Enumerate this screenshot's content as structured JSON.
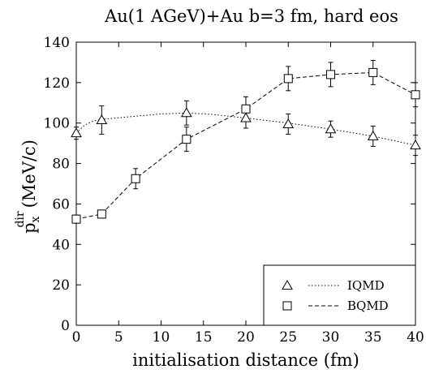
{
  "chart_data": {
    "type": "line",
    "title": "Au(1 AGeV)+Au b=3 fm, hard eos",
    "xlabel": "initialisation distance (fm)",
    "ylabel": {
      "main": "p",
      "sub": "x",
      "sup": "dir",
      "unit": "(MeV/c)"
    },
    "xlim": [
      0,
      40
    ],
    "ylim": [
      0,
      140
    ],
    "xticks": [
      0,
      5,
      10,
      15,
      20,
      25,
      30,
      35,
      40
    ],
    "yticks": [
      0,
      20,
      40,
      60,
      80,
      100,
      120,
      140
    ],
    "grid": false,
    "legend_position": "bottom-right",
    "series": [
      {
        "name": "IQMD",
        "marker": "triangle",
        "line_style": "dotted",
        "points": [
          {
            "x": 0,
            "y": 95,
            "err": 3
          },
          {
            "x": 3,
            "y": 101.5,
            "err": 7
          },
          {
            "x": 13,
            "y": 105,
            "err": 6
          },
          {
            "x": 20,
            "y": 102.5,
            "err": 5
          },
          {
            "x": 25,
            "y": 99.5,
            "err": 5
          },
          {
            "x": 30,
            "y": 97,
            "err": 4
          },
          {
            "x": 35,
            "y": 93.5,
            "err": 5
          },
          {
            "x": 40,
            "y": 89,
            "err": 5
          }
        ],
        "curve": [
          {
            "x": 0,
            "y": 95
          },
          {
            "x": 1,
            "y": 99
          },
          {
            "x": 2,
            "y": 101
          },
          {
            "x": 3,
            "y": 101.8
          },
          {
            "x": 6,
            "y": 103
          },
          {
            "x": 10,
            "y": 104.5
          },
          {
            "x": 13,
            "y": 105
          },
          {
            "x": 16,
            "y": 104.3
          },
          {
            "x": 20,
            "y": 102.5
          },
          {
            "x": 25,
            "y": 100
          },
          {
            "x": 30,
            "y": 97
          },
          {
            "x": 35,
            "y": 93.5
          },
          {
            "x": 40,
            "y": 89
          }
        ]
      },
      {
        "name": "BQMD",
        "marker": "square",
        "line_style": "dashed",
        "points": [
          {
            "x": 0,
            "y": 52.5,
            "err": 2
          },
          {
            "x": 3,
            "y": 55,
            "err": 2
          },
          {
            "x": 7,
            "y": 72.5,
            "err": 5
          },
          {
            "x": 13,
            "y": 92,
            "err": 6
          },
          {
            "x": 20,
            "y": 107,
            "err": 6
          },
          {
            "x": 25,
            "y": 122,
            "err": 6
          },
          {
            "x": 30,
            "y": 124,
            "err": 6
          },
          {
            "x": 35,
            "y": 125,
            "err": 6
          },
          {
            "x": 40,
            "y": 114,
            "err": 6
          }
        ],
        "curve": [
          {
            "x": 0,
            "y": 52.5
          },
          {
            "x": 3,
            "y": 55
          },
          {
            "x": 7,
            "y": 72.5
          },
          {
            "x": 13,
            "y": 92
          },
          {
            "x": 20,
            "y": 107
          },
          {
            "x": 25,
            "y": 122
          },
          {
            "x": 30,
            "y": 124
          },
          {
            "x": 35,
            "y": 125
          },
          {
            "x": 40,
            "y": 114
          }
        ]
      }
    ]
  }
}
